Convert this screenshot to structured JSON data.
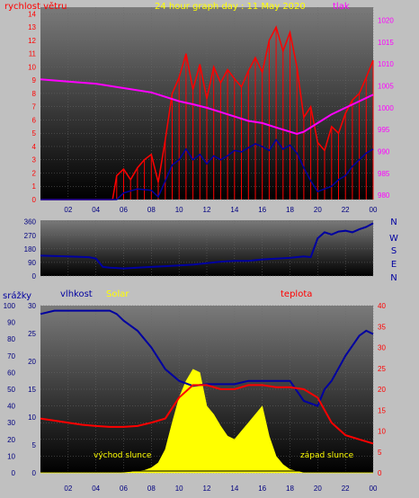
{
  "chart_data": [
    {
      "type": "line",
      "title": "24 hour graph day : 11 May 2020",
      "left_label": "rychlost větru",
      "right_label": "tlak",
      "x_ticks": [
        "02",
        "04",
        "06",
        "08",
        "10",
        "12",
        "14",
        "16",
        "18",
        "20",
        "22",
        "00"
      ],
      "left_ticks": [
        "0",
        "1",
        "2",
        "3",
        "4",
        "5",
        "6",
        "7",
        "8",
        "9",
        "10",
        "11",
        "12",
        "13",
        "14"
      ],
      "right_ticks": [
        "980",
        "985",
        "990",
        "995",
        "1000",
        "1005",
        "1010",
        "1015",
        "1020"
      ],
      "ylim_left": [
        0,
        14.5
      ],
      "ylim_right": [
        979,
        1023
      ],
      "series": [
        {
          "color": "#ff0000",
          "x": [
            0,
            5.2,
            5.5,
            6,
            6.5,
            7,
            7.5,
            8,
            8.5,
            9,
            9.5,
            10,
            10.5,
            11,
            11.5,
            12,
            12.5,
            13,
            13.5,
            14,
            14.5,
            15,
            15.5,
            16,
            16.5,
            17,
            17.5,
            18,
            18.5,
            19,
            19.5,
            20,
            20.5,
            21,
            21.5,
            22,
            22.5,
            23,
            23.5,
            24
          ],
          "values": [
            0,
            0,
            1.8,
            2.3,
            1.5,
            2.4,
            3.0,
            3.4,
            1.3,
            4.5,
            8.0,
            9.2,
            11.0,
            8.3,
            10.2,
            7.6,
            10.0,
            8.8,
            9.8,
            9.1,
            8.5,
            9.7,
            10.7,
            9.6,
            12.0,
            13.0,
            11.2,
            12.6,
            10.0,
            6.2,
            7.0,
            4.3,
            3.7,
            5.5,
            5.0,
            6.5,
            7.5,
            8.0,
            9.2,
            10.5
          ]
        },
        {
          "color": "#0000a0",
          "x": [
            0,
            5.5,
            6,
            7,
            8,
            8.5,
            9,
            9.5,
            10,
            10.5,
            11,
            11.5,
            12,
            12.5,
            13,
            13.5,
            14,
            14.5,
            15,
            15.5,
            16,
            16.5,
            17,
            17.5,
            18,
            18.5,
            19,
            19.5,
            20,
            20.5,
            21,
            21.5,
            22,
            22.5,
            23,
            23.5,
            24
          ],
          "values": [
            0,
            0,
            0.5,
            0.8,
            0.7,
            0.2,
            1.4,
            2.6,
            3.0,
            3.8,
            3.0,
            3.4,
            2.7,
            3.3,
            3.0,
            3.3,
            3.7,
            3.6,
            3.9,
            4.2,
            4.0,
            3.7,
            4.5,
            3.8,
            4.1,
            3.5,
            2.4,
            1.4,
            0.6,
            0.8,
            1.0,
            1.5,
            1.8,
            2.5,
            3.0,
            3.5,
            3.8
          ]
        },
        {
          "color": "#ff00ff",
          "axis": "right",
          "x": [
            0,
            2,
            4,
            6,
            8,
            9,
            10,
            11,
            12,
            13,
            14,
            15,
            16,
            17,
            18,
            18.5,
            19,
            20,
            21,
            22,
            23,
            24
          ],
          "values": [
            1006.5,
            1006,
            1005.5,
            1004.5,
            1003.5,
            1002.5,
            1001.5,
            1000.8,
            1000,
            999,
            998,
            997,
            996.5,
            995.5,
            994.5,
            994,
            994.5,
            996.5,
            998.5,
            1000,
            1001.5,
            1003
          ]
        }
      ]
    },
    {
      "type": "line",
      "left_ticks": [
        "0",
        "90",
        "180",
        "270",
        "360"
      ],
      "right_ticks": [
        "N",
        "W",
        "S",
        "E",
        "N"
      ],
      "ylim": [
        0,
        370
      ],
      "series": [
        {
          "color": "#0000a0",
          "x": [
            0,
            2,
            3.5,
            4,
            4.5,
            5,
            6,
            7,
            8,
            9,
            10,
            11,
            12,
            13,
            14,
            15,
            16,
            17,
            18,
            19,
            19.5,
            20,
            20.5,
            21,
            21.5,
            22,
            22.5,
            23,
            23.5,
            24
          ],
          "values": [
            135,
            130,
            125,
            115,
            60,
            55,
            50,
            55,
            60,
            65,
            70,
            75,
            85,
            95,
            100,
            100,
            110,
            115,
            120,
            130,
            125,
            250,
            290,
            275,
            295,
            300,
            290,
            310,
            325,
            350
          ]
        }
      ]
    },
    {
      "type": "line",
      "labels": [
        "srážky",
        "vlhkost",
        "Solar",
        "teplota"
      ],
      "annotations": [
        "východ slunce",
        "západ slunce"
      ],
      "x_ticks": [
        "02",
        "04",
        "06",
        "08",
        "10",
        "12",
        "14",
        "16",
        "18",
        "20",
        "22",
        "00"
      ],
      "rain_ticks": [
        "0",
        "10",
        "20",
        "30",
        "40",
        "50",
        "60",
        "70",
        "80",
        "90",
        "100"
      ],
      "humidity_ticks": [
        "0",
        "5",
        "10",
        "15",
        "20",
        "25",
        "30"
      ],
      "temp_ticks": [
        "0",
        "5",
        "10",
        "15",
        "20",
        "25",
        "30",
        "35",
        "40"
      ],
      "series": [
        {
          "color": "#ffff00",
          "type": "area",
          "x": [
            0,
            5.8,
            6.5,
            7,
            7.5,
            8,
            8.5,
            9,
            9.5,
            10,
            10.5,
            11,
            11.5,
            12,
            12.5,
            13,
            13.5,
            14,
            14.5,
            15,
            15.5,
            16,
            16.5,
            17,
            17.5,
            18,
            18.5,
            19,
            24
          ],
          "values": [
            0,
            0,
            0.5,
            1.0,
            1.5,
            3.0,
            6.0,
            14.0,
            30.0,
            45.0,
            55.0,
            62.0,
            60.0,
            40.0,
            35.0,
            28.0,
            22.0,
            20.0,
            25.0,
            30.0,
            35.0,
            40.0,
            22.0,
            10.0,
            5.0,
            2.0,
            1.0,
            0,
            0
          ]
        },
        {
          "color": "#0000a0",
          "x": [
            0,
            1,
            2,
            3,
            4,
            5,
            5.5,
            6,
            7,
            7.5,
            8,
            9,
            10,
            11,
            12,
            13,
            14,
            15,
            16,
            17,
            18,
            19,
            20,
            20.5,
            21,
            22,
            23,
            23.5,
            24
          ],
          "values": [
            95,
            97,
            97,
            97,
            97,
            97,
            95,
            91,
            85,
            80,
            75,
            62,
            55,
            52,
            53,
            53,
            53,
            55,
            55,
            55,
            55,
            43,
            40,
            50,
            55,
            70,
            82,
            85,
            83
          ]
        },
        {
          "color": "#ff0000",
          "x": [
            0,
            1,
            2,
            3,
            4,
            5,
            6,
            7,
            8,
            9,
            10,
            11,
            12,
            13,
            14,
            15,
            16,
            17,
            18,
            19,
            20,
            21,
            22,
            23,
            24
          ],
          "values": [
            13,
            12.5,
            12,
            11.5,
            11.2,
            11,
            11,
            11.2,
            12,
            13,
            18,
            21,
            21,
            20,
            20,
            21,
            21,
            20.5,
            20.5,
            20,
            18,
            12,
            9,
            8,
            7
          ]
        }
      ]
    }
  ],
  "colors": {
    "background": "#c0c0c0",
    "wind_label": "#ff0000",
    "title": "#ffff00",
    "pressure_label": "#ff00ff",
    "dir_label": "#0000a0",
    "humidity_label": "#0000a0",
    "solar_label": "#ffff00",
    "temp_label": "#ff0000"
  }
}
